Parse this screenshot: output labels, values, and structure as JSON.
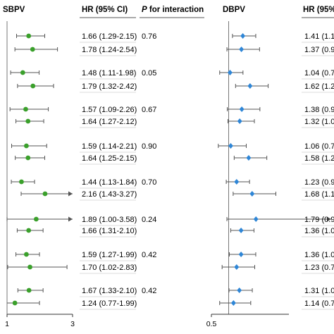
{
  "headers": {
    "sbpv_panel": "SBPV",
    "hr_col": "HR (95% CI)",
    "p_italic": "P",
    "p_rest": " for interaction",
    "dbpv_panel": "DBPV",
    "dbpv_hr_col": "HR (95%"
  },
  "sbpv_axis": {
    "ticks": [
      1,
      3
    ],
    "tick_labels": [
      "1",
      "3"
    ],
    "range": [
      1,
      3
    ]
  },
  "dbpv_axis": {
    "ticks": [
      0.5
    ],
    "tick_labels": [
      "0.5"
    ],
    "range": [
      0.5,
      2.5
    ]
  },
  "colors": {
    "sbpv_marker": "#3aa02b",
    "dbpv_marker": "#2f86d6",
    "line": "#555555",
    "ref": "#777777"
  },
  "chart_data": [
    {
      "type": "forest",
      "title": "SBPV",
      "xlim": [
        1,
        3
      ],
      "ref_line": 1,
      "rows": [
        {
          "group": 1,
          "hr": 1.66,
          "low": 1.29,
          "high": 2.15,
          "label": "1.66 (1.29-2.15)",
          "p": "0.76"
        },
        {
          "group": 1,
          "hr": 1.78,
          "low": 1.24,
          "high": 2.54,
          "label": "1.78 (1.24-2.54)",
          "p": ""
        },
        {
          "group": 2,
          "hr": 1.48,
          "low": 1.11,
          "high": 1.98,
          "label": "1.48 (1.11-1.98)",
          "p": "0.05"
        },
        {
          "group": 2,
          "hr": 1.79,
          "low": 1.32,
          "high": 2.42,
          "label": "1.79 (1.32-2.42)",
          "p": ""
        },
        {
          "group": 3,
          "hr": 1.57,
          "low": 1.09,
          "high": 2.26,
          "label": "1.57 (1.09-2.26)",
          "p": "0.67"
        },
        {
          "group": 3,
          "hr": 1.64,
          "low": 1.27,
          "high": 2.12,
          "label": "1.64 (1.27-2.12)",
          "p": ""
        },
        {
          "group": 4,
          "hr": 1.59,
          "low": 1.14,
          "high": 2.21,
          "label": "1.59 (1.14-2.21)",
          "p": "0.90"
        },
        {
          "group": 4,
          "hr": 1.64,
          "low": 1.25,
          "high": 2.15,
          "label": "1.64 (1.25-2.15)",
          "p": ""
        },
        {
          "group": 5,
          "hr": 1.44,
          "low": 1.13,
          "high": 1.84,
          "label": "1.44 (1.13-1.84)",
          "p": "0.70"
        },
        {
          "group": 5,
          "hr": 2.16,
          "low": 1.43,
          "high": 3.27,
          "label": "2.16 (1.43-3.27)",
          "p": "",
          "arrow_right": true
        },
        {
          "group": 6,
          "hr": 1.89,
          "low": 1.0,
          "high": 3.58,
          "label": "1.89 (1.00-3.58)",
          "p": "0.24",
          "arrow_right": true
        },
        {
          "group": 6,
          "hr": 1.66,
          "low": 1.31,
          "high": 2.1,
          "label": "1.66 (1.31-2.10)",
          "p": ""
        },
        {
          "group": 7,
          "hr": 1.59,
          "low": 1.27,
          "high": 1.99,
          "label": "1.59 (1.27-1.99)",
          "p": "0.42"
        },
        {
          "group": 7,
          "hr": 1.7,
          "low": 1.02,
          "high": 2.83,
          "label": "1.70 (1.02-2.83)",
          "p": ""
        },
        {
          "group": 8,
          "hr": 1.67,
          "low": 1.33,
          "high": 2.1,
          "label": "1.67 (1.33-2.10)",
          "p": "0.42"
        },
        {
          "group": 8,
          "hr": 1.24,
          "low": 0.77,
          "high": 1.99,
          "label": "1.24 (0.77-1.99)",
          "p": "",
          "arrow_left": true
        }
      ]
    },
    {
      "type": "forest",
      "title": "DBPV",
      "ref_line": 1,
      "rows": [
        {
          "group": 1,
          "hr": 1.41,
          "label": "1.41 (1.1"
        },
        {
          "group": 1,
          "hr": 1.37,
          "label": "1.37 (0.9"
        },
        {
          "group": 2,
          "hr": 1.04,
          "label": "1.04 (0.7"
        },
        {
          "group": 2,
          "hr": 1.62,
          "label": "1.62 (1.2"
        },
        {
          "group": 3,
          "hr": 1.38,
          "label": "1.38 (0.9"
        },
        {
          "group": 3,
          "hr": 1.32,
          "label": "1.32 (1.0"
        },
        {
          "group": 4,
          "hr": 1.06,
          "label": "1.06 (0.7"
        },
        {
          "group": 4,
          "hr": 1.58,
          "label": "1.58 (1.2"
        },
        {
          "group": 5,
          "hr": 1.23,
          "label": "1.23 (0.9"
        },
        {
          "group": 5,
          "hr": 1.68,
          "label": "1.68 (1.1"
        },
        {
          "group": 6,
          "hr": 1.79,
          "label": "1.79 (0.9",
          "arrow_right": true
        },
        {
          "group": 6,
          "hr": 1.36,
          "label": "1.36 (1.0"
        },
        {
          "group": 7,
          "hr": 1.36,
          "label": "1.36 (1.0"
        },
        {
          "group": 7,
          "hr": 1.23,
          "label": "1.23 (0.7"
        },
        {
          "group": 8,
          "hr": 1.31,
          "label": "1.31 (1.0"
        },
        {
          "group": 8,
          "hr": 1.14,
          "label": "1.14 (0.7"
        }
      ]
    }
  ]
}
